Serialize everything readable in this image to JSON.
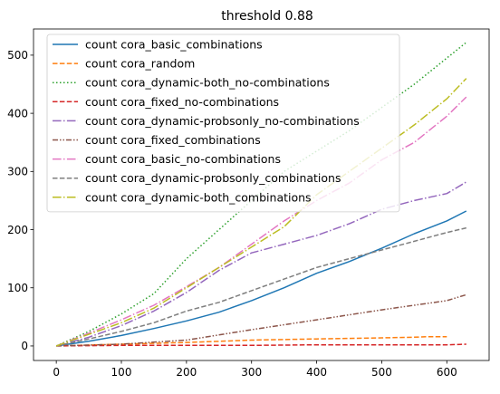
{
  "chart_data": {
    "type": "line",
    "title": "threshold 0.88",
    "xlabel": "",
    "ylabel": "",
    "xlim": [
      -35,
      665
    ],
    "ylim": [
      -25,
      545
    ],
    "xticks": [
      0,
      100,
      200,
      300,
      400,
      500,
      600
    ],
    "yticks": [
      0,
      100,
      200,
      300,
      400,
      500
    ],
    "grid": false,
    "legend_position": "upper-left",
    "series": [
      {
        "name": "count cora_basic_combinations",
        "color": "#1f77b4",
        "dash": "solid",
        "x": [
          0,
          50,
          100,
          150,
          200,
          250,
          300,
          350,
          400,
          450,
          500,
          550,
          600,
          630
        ],
        "y": [
          0,
          8,
          18,
          30,
          43,
          58,
          78,
          100,
          125,
          145,
          168,
          193,
          215,
          232
        ]
      },
      {
        "name": "count cora_random",
        "color": "#ff7f0e",
        "dash": "dashed",
        "x": [
          0,
          100,
          200,
          300,
          400,
          450,
          500,
          550,
          570,
          600
        ],
        "y": [
          0,
          3,
          6,
          10,
          12,
          13,
          14,
          15,
          16,
          16
        ]
      },
      {
        "name": "count cora_dynamic-both_no-combinations",
        "color": "#2ca02c",
        "dash": "dotted",
        "x": [
          0,
          50,
          100,
          150,
          200,
          250,
          300,
          350,
          400,
          450,
          500,
          550,
          600,
          630
        ],
        "y": [
          0,
          25,
          55,
          90,
          150,
          200,
          250,
          300,
          335,
          370,
          410,
          450,
          495,
          522
        ]
      },
      {
        "name": "count cora_fixed_no-combinations",
        "color": "#d62728",
        "dash": "dashed",
        "x": [
          0,
          100,
          200,
          300,
          400,
          500,
          600,
          630
        ],
        "y": [
          0,
          1,
          1,
          1,
          2,
          2,
          2,
          3
        ]
      },
      {
        "name": "count cora_dynamic-probsonly_no-combinations",
        "color": "#9467bd",
        "dash": "dashdot",
        "x": [
          0,
          50,
          100,
          150,
          200,
          250,
          300,
          350,
          400,
          450,
          500,
          550,
          600,
          630
        ],
        "y": [
          0,
          15,
          35,
          60,
          92,
          130,
          160,
          175,
          190,
          210,
          235,
          250,
          262,
          282
        ]
      },
      {
        "name": "count cora_fixed_combinations",
        "color": "#8c564b",
        "dash": "dashdotdot",
        "x": [
          0,
          100,
          200,
          300,
          400,
          500,
          600,
          630
        ],
        "y": [
          0,
          3,
          10,
          28,
          45,
          62,
          78,
          88
        ]
      },
      {
        "name": "count cora_basic_no-combinations",
        "color": "#e377c2",
        "dash": "dashdot",
        "x": [
          0,
          50,
          100,
          150,
          200,
          250,
          300,
          350,
          400,
          450,
          500,
          550,
          600,
          630
        ],
        "y": [
          0,
          22,
          45,
          70,
          102,
          135,
          175,
          215,
          250,
          280,
          320,
          350,
          395,
          428
        ]
      },
      {
        "name": "count cora_dynamic-probsonly_combinations",
        "color": "#7f7f7f",
        "dash": "dashed",
        "x": [
          0,
          50,
          100,
          150,
          200,
          250,
          300,
          350,
          400,
          450,
          500,
          550,
          600,
          630
        ],
        "y": [
          0,
          12,
          25,
          40,
          60,
          75,
          95,
          115,
          135,
          150,
          165,
          180,
          195,
          203
        ]
      },
      {
        "name": "count cora_dynamic-both_combinations",
        "color": "#bcbd22",
        "dash": "dashdot",
        "x": [
          0,
          50,
          100,
          150,
          200,
          250,
          300,
          350,
          400,
          450,
          500,
          550,
          600,
          630
        ],
        "y": [
          0,
          20,
          40,
          65,
          100,
          135,
          170,
          205,
          260,
          300,
          340,
          380,
          425,
          460
        ]
      }
    ]
  }
}
